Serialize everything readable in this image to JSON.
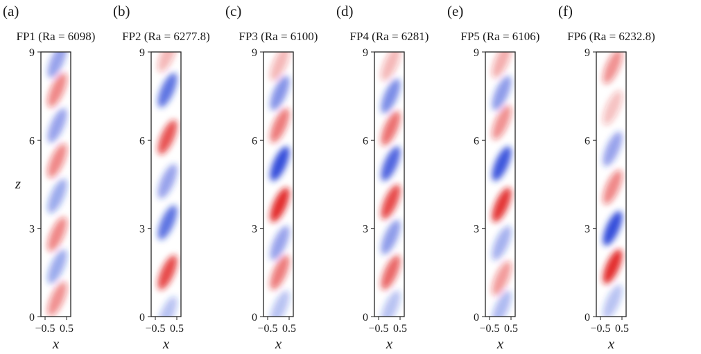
{
  "chart_data": [
    {
      "type": "heatmap",
      "panel": "(a)",
      "title": "FP1 (Ra = 6098)",
      "xlabel": "x",
      "ylabel": "z",
      "xlim": [
        -0.5,
        0.5
      ],
      "ylim": [
        0,
        9
      ],
      "xticks": [
        "−0.5",
        "0.5"
      ],
      "yticks": [
        "0",
        "3",
        "6",
        "9"
      ],
      "colormap": {
        "negative": "#1f3bd6",
        "zero": "#ffffff",
        "positive": "#e01a1a"
      },
      "bands": [
        {
          "z": 0.6,
          "amp": 0.45
        },
        {
          "z": 1.7,
          "amp": -0.4
        },
        {
          "z": 2.8,
          "amp": 0.5
        },
        {
          "z": 4.1,
          "amp": -0.4
        },
        {
          "z": 5.3,
          "amp": 0.5
        },
        {
          "z": 6.5,
          "amp": -0.45
        },
        {
          "z": 7.7,
          "amp": 0.5
        },
        {
          "z": 8.7,
          "amp": -0.45
        }
      ]
    },
    {
      "type": "heatmap",
      "panel": "(b)",
      "title": "FP2 (Ra = 6277.8)",
      "xlabel": "x",
      "ylabel": "",
      "xlim": [
        -0.5,
        0.5
      ],
      "ylim": [
        0,
        9
      ],
      "xticks": [
        "−0.5",
        "0.5"
      ],
      "yticks": [
        "0",
        "3",
        "6",
        "9"
      ],
      "colormap": {
        "negative": "#1f3bd6",
        "zero": "#ffffff",
        "positive": "#e01a1a"
      },
      "bands": [
        {
          "z": 0.1,
          "amp": -0.25
        },
        {
          "z": 1.5,
          "amp": 0.85
        },
        {
          "z": 3.2,
          "amp": -0.75
        },
        {
          "z": 4.6,
          "amp": -0.45
        },
        {
          "z": 6.1,
          "amp": 0.8
        },
        {
          "z": 7.7,
          "amp": -0.75
        },
        {
          "z": 8.9,
          "amp": 0.25
        }
      ]
    },
    {
      "type": "heatmap",
      "panel": "(c)",
      "title": "FP3 (Ra = 6100)",
      "xlabel": "x",
      "ylabel": "",
      "xlim": [
        -0.5,
        0.5
      ],
      "ylim": [
        0,
        9
      ],
      "xticks": [
        "−0.5",
        "0.5"
      ],
      "yticks": [
        "0",
        "3",
        "6",
        "9"
      ],
      "colormap": {
        "negative": "#1f3bd6",
        "zero": "#ffffff",
        "positive": "#e01a1a"
      },
      "bands": [
        {
          "z": 0.3,
          "amp": -0.25
        },
        {
          "z": 1.5,
          "amp": 0.6
        },
        {
          "z": 2.5,
          "amp": -0.45
        },
        {
          "z": 3.8,
          "amp": 1.0
        },
        {
          "z": 5.2,
          "amp": -1.0
        },
        {
          "z": 6.5,
          "amp": 0.6
        },
        {
          "z": 7.6,
          "amp": -0.55
        },
        {
          "z": 8.6,
          "amp": 0.25
        }
      ]
    },
    {
      "type": "heatmap",
      "panel": "(d)",
      "title": "FP4 (Ra = 6281)",
      "xlabel": "x",
      "ylabel": "",
      "xlim": [
        -0.5,
        0.5
      ],
      "ylim": [
        0,
        9
      ],
      "xticks": [
        "−0.5",
        "0.5"
      ],
      "yticks": [
        "0",
        "3",
        "6",
        "9"
      ],
      "colormap": {
        "negative": "#1f3bd6",
        "zero": "#ffffff",
        "positive": "#e01a1a"
      },
      "bands": [
        {
          "z": 0.3,
          "amp": -0.25
        },
        {
          "z": 1.5,
          "amp": 0.7
        },
        {
          "z": 2.7,
          "amp": -0.5
        },
        {
          "z": 3.9,
          "amp": 0.85
        },
        {
          "z": 5.2,
          "amp": -0.85
        },
        {
          "z": 6.4,
          "amp": 0.65
        },
        {
          "z": 7.5,
          "amp": -0.6
        },
        {
          "z": 8.6,
          "amp": 0.25
        }
      ]
    },
    {
      "type": "heatmap",
      "panel": "(e)",
      "title": "FP5 (Ra = 6106)",
      "xlabel": "x",
      "ylabel": "",
      "xlim": [
        -0.5,
        0.5
      ],
      "ylim": [
        0,
        9
      ],
      "xticks": [
        "−0.5",
        "0.5"
      ],
      "yticks": [
        "0",
        "3",
        "6",
        "9"
      ],
      "colormap": {
        "negative": "#1f3bd6",
        "zero": "#ffffff",
        "positive": "#e01a1a"
      },
      "bands": [
        {
          "z": 0.3,
          "amp": -0.3
        },
        {
          "z": 1.3,
          "amp": 0.4
        },
        {
          "z": 2.5,
          "amp": -0.35
        },
        {
          "z": 3.8,
          "amp": 0.95
        },
        {
          "z": 5.2,
          "amp": -0.95
        },
        {
          "z": 6.6,
          "amp": 0.45
        },
        {
          "z": 7.6,
          "amp": -0.5
        },
        {
          "z": 8.7,
          "amp": 0.3
        }
      ]
    },
    {
      "type": "heatmap",
      "panel": "(f)",
      "title": "FP6 (Ra = 6232.8)",
      "xlabel": "x",
      "ylabel": "",
      "xlim": [
        -0.5,
        0.5
      ],
      "ylim": [
        0,
        9
      ],
      "xticks": [
        "−0.5",
        "0.5"
      ],
      "yticks": [
        "0",
        "3",
        "6",
        "9"
      ],
      "colormap": {
        "negative": "#1f3bd6",
        "zero": "#ffffff",
        "positive": "#e01a1a"
      },
      "bands": [
        {
          "z": 0.5,
          "amp": -0.25
        },
        {
          "z": 1.7,
          "amp": 1.0
        },
        {
          "z": 3.0,
          "amp": -1.0
        },
        {
          "z": 4.4,
          "amp": 0.5
        },
        {
          "z": 5.7,
          "amp": -0.45
        },
        {
          "z": 7.1,
          "amp": 0.2
        },
        {
          "z": 8.5,
          "amp": 0.45
        }
      ]
    }
  ]
}
